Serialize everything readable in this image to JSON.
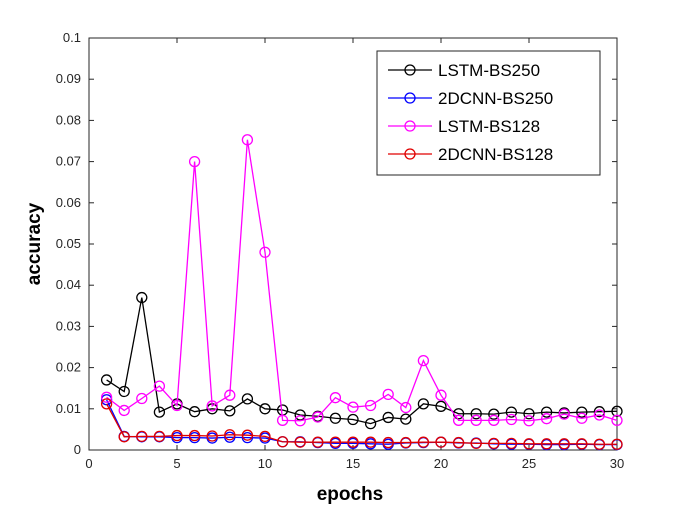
{
  "chart_data": {
    "type": "line",
    "xlabel": "epochs",
    "ylabel": "accuracy",
    "xlim": [
      0,
      30
    ],
    "ylim": [
      0,
      0.1
    ],
    "xticks": [
      "0",
      "5",
      "10",
      "15",
      "20",
      "25",
      "30"
    ],
    "yticks": [
      "0",
      "0.01",
      "0.02",
      "0.03",
      "0.04",
      "0.05",
      "0.06",
      "0.07",
      "0.08",
      "0.09",
      "0.1"
    ],
    "grid": false,
    "legend_position": "top-right",
    "x": [
      1,
      2,
      3,
      4,
      5,
      6,
      7,
      8,
      9,
      10,
      11,
      12,
      13,
      14,
      15,
      16,
      17,
      18,
      19,
      20,
      21,
      22,
      23,
      24,
      25,
      26,
      27,
      28,
      29,
      30
    ],
    "series": [
      {
        "name": "LSTM-BS250",
        "color": "#000000",
        "values": [
          0.017,
          0.0142,
          0.037,
          0.0092,
          0.0112,
          0.0093,
          0.01,
          0.0095,
          0.0124,
          0.01,
          0.0097,
          0.0085,
          0.0082,
          0.0077,
          0.0074,
          0.0064,
          0.0079,
          0.0075,
          0.0112,
          0.0106,
          0.0088,
          0.0088,
          0.0087,
          0.0092,
          0.0088,
          0.0092,
          0.009,
          0.0092,
          0.0093,
          0.0094
        ]
      },
      {
        "name": "2DCNN-BS250",
        "color": "#0000ff",
        "values": [
          0.0122,
          0.0033,
          0.0032,
          0.0032,
          0.003,
          0.003,
          0.0029,
          0.0031,
          0.003,
          0.0029,
          0.002,
          0.002,
          0.0018,
          0.0016,
          0.0016,
          0.0015,
          0.0014,
          0.0017,
          0.0018,
          0.0019,
          0.0017,
          0.0017,
          0.0015,
          0.0014,
          0.0014,
          0.0013,
          0.0013,
          0.0014,
          0.0013,
          0.0013
        ]
      },
      {
        "name": "LSTM-BS128",
        "color": "#ff00ff",
        "values": [
          0.0128,
          0.0096,
          0.0125,
          0.0155,
          0.0108,
          0.07,
          0.0107,
          0.0133,
          0.0753,
          0.048,
          0.0072,
          0.0071,
          0.008,
          0.0127,
          0.0104,
          0.0108,
          0.0135,
          0.0103,
          0.0217,
          0.0133,
          0.0072,
          0.0072,
          0.0072,
          0.0074,
          0.0071,
          0.0076,
          0.0087,
          0.0077,
          0.0085,
          0.0072
        ]
      },
      {
        "name": "2DCNN-BS128",
        "color": "#e00000",
        "values": [
          0.0112,
          0.0032,
          0.0033,
          0.0033,
          0.0035,
          0.0035,
          0.0034,
          0.0037,
          0.0036,
          0.0033,
          0.002,
          0.0019,
          0.0019,
          0.0019,
          0.0019,
          0.0019,
          0.0018,
          0.0018,
          0.0019,
          0.0019,
          0.0018,
          0.0016,
          0.0016,
          0.0016,
          0.0015,
          0.0015,
          0.0015,
          0.0015,
          0.0014,
          0.0014
        ]
      }
    ]
  }
}
